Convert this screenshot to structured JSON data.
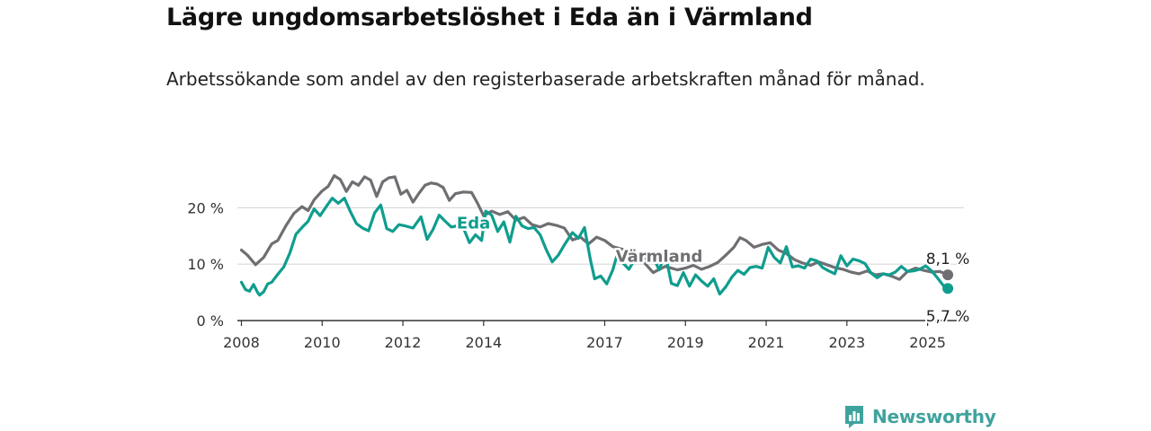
{
  "title": "Lägre ungdomsarbetslöshet i Eda än i Värmland",
  "subtitle": "Arbetssökande som andel av den registerbaserade arbetskraften månad för månad.",
  "brand": {
    "name": "Newsworthy"
  },
  "colors": {
    "eda": "#0f9d8e",
    "varmland": "#6f6f73",
    "grid": "#d9d9d9",
    "axis": "#333333",
    "brand": "#3fa39d"
  },
  "chart_data": {
    "type": "line",
    "title": "",
    "xlabel": "",
    "ylabel": "",
    "x_range": [
      2007.9,
      2025.9
    ],
    "ylim": [
      0,
      25
    ],
    "grid": "horizontal",
    "y_ticks": [
      0,
      10,
      20
    ],
    "y_tick_labels": [
      "0 %",
      "10 %",
      "20 %"
    ],
    "x_ticks": [
      2008,
      2010,
      2012,
      2014,
      2017,
      2019,
      2021,
      2023,
      2025
    ],
    "x_tick_labels": [
      "2008",
      "2010",
      "2012",
      "2014",
      "2017",
      "2019",
      "2021",
      "2023",
      "2025"
    ],
    "series": [
      {
        "name": "Värmland",
        "color": "#6f6f73",
        "label": {
          "text": "Värmland",
          "anchor": [
            2018.35,
            10.4
          ]
        },
        "end_value_label": "8,1 %",
        "end_point": [
          2025.5,
          8.1
        ],
        "points": [
          [
            2008.0,
            12.5
          ],
          [
            2008.15,
            11.6
          ],
          [
            2008.35,
            9.9
          ],
          [
            2008.55,
            11.2
          ],
          [
            2008.75,
            13.6
          ],
          [
            2008.9,
            14.2
          ],
          [
            2009.1,
            16.8
          ],
          [
            2009.3,
            19.0
          ],
          [
            2009.5,
            20.2
          ],
          [
            2009.65,
            19.5
          ],
          [
            2009.8,
            21.4
          ],
          [
            2010.0,
            23.0
          ],
          [
            2010.15,
            23.8
          ],
          [
            2010.3,
            25.7
          ],
          [
            2010.45,
            25.0
          ],
          [
            2010.6,
            22.9
          ],
          [
            2010.75,
            24.6
          ],
          [
            2010.9,
            24.0
          ],
          [
            2011.05,
            25.5
          ],
          [
            2011.2,
            24.9
          ],
          [
            2011.35,
            22.0
          ],
          [
            2011.5,
            24.6
          ],
          [
            2011.65,
            25.3
          ],
          [
            2011.8,
            25.5
          ],
          [
            2011.95,
            22.4
          ],
          [
            2012.1,
            23.1
          ],
          [
            2012.25,
            21.0
          ],
          [
            2012.4,
            22.6
          ],
          [
            2012.55,
            24.0
          ],
          [
            2012.7,
            24.4
          ],
          [
            2012.85,
            24.2
          ],
          [
            2013.0,
            23.6
          ],
          [
            2013.15,
            21.3
          ],
          [
            2013.3,
            22.5
          ],
          [
            2013.5,
            22.8
          ],
          [
            2013.7,
            22.7
          ],
          [
            2013.85,
            20.8
          ],
          [
            2014.0,
            18.6
          ],
          [
            2014.2,
            19.4
          ],
          [
            2014.4,
            18.8
          ],
          [
            2014.6,
            19.3
          ],
          [
            2014.8,
            17.8
          ],
          [
            2015.0,
            18.3
          ],
          [
            2015.2,
            17.0
          ],
          [
            2015.4,
            16.6
          ],
          [
            2015.6,
            17.2
          ],
          [
            2015.8,
            16.9
          ],
          [
            2016.0,
            16.4
          ],
          [
            2016.2,
            14.3
          ],
          [
            2016.4,
            14.8
          ],
          [
            2016.6,
            13.6
          ],
          [
            2016.8,
            14.8
          ],
          [
            2017.0,
            14.2
          ],
          [
            2017.2,
            13.1
          ],
          [
            2017.4,
            12.7
          ],
          [
            2017.6,
            12.4
          ],
          [
            2017.8,
            11.5
          ],
          [
            2018.0,
            10.1
          ],
          [
            2018.2,
            8.5
          ],
          [
            2018.5,
            9.6
          ],
          [
            2018.8,
            9.0
          ],
          [
            2019.0,
            9.3
          ],
          [
            2019.2,
            9.8
          ],
          [
            2019.4,
            9.1
          ],
          [
            2019.6,
            9.6
          ],
          [
            2019.8,
            10.3
          ],
          [
            2020.0,
            11.6
          ],
          [
            2020.2,
            13.0
          ],
          [
            2020.35,
            14.7
          ],
          [
            2020.5,
            14.2
          ],
          [
            2020.7,
            13.0
          ],
          [
            2020.9,
            13.5
          ],
          [
            2021.1,
            13.8
          ],
          [
            2021.3,
            12.5
          ],
          [
            2021.5,
            11.9
          ],
          [
            2021.7,
            10.8
          ],
          [
            2021.9,
            10.2
          ],
          [
            2022.1,
            9.8
          ],
          [
            2022.3,
            10.4
          ],
          [
            2022.5,
            9.9
          ],
          [
            2022.7,
            9.4
          ],
          [
            2022.9,
            9.1
          ],
          [
            2023.1,
            8.6
          ],
          [
            2023.3,
            8.3
          ],
          [
            2023.5,
            8.8
          ],
          [
            2023.7,
            8.1
          ],
          [
            2023.9,
            8.3
          ],
          [
            2024.1,
            7.9
          ],
          [
            2024.3,
            7.3
          ],
          [
            2024.5,
            8.7
          ],
          [
            2024.7,
            9.3
          ],
          [
            2024.9,
            8.9
          ],
          [
            2025.1,
            8.6
          ],
          [
            2025.3,
            8.7
          ],
          [
            2025.5,
            8.1
          ]
        ]
      },
      {
        "name": "Eda",
        "color": "#0f9d8e",
        "label": {
          "text": "Eda",
          "anchor": [
            2013.75,
            16.3
          ]
        },
        "end_value_label": "5,7 %",
        "end_point": [
          2025.5,
          5.7
        ],
        "points": [
          [
            2008.0,
            6.8
          ],
          [
            2008.1,
            5.5
          ],
          [
            2008.2,
            5.2
          ],
          [
            2008.3,
            6.4
          ],
          [
            2008.4,
            5.0
          ],
          [
            2008.45,
            4.5
          ],
          [
            2008.55,
            5.1
          ],
          [
            2008.65,
            6.5
          ],
          [
            2008.75,
            6.8
          ],
          [
            2008.9,
            8.2
          ],
          [
            2009.05,
            9.5
          ],
          [
            2009.2,
            12.0
          ],
          [
            2009.35,
            15.3
          ],
          [
            2009.5,
            16.5
          ],
          [
            2009.65,
            17.6
          ],
          [
            2009.8,
            19.8
          ],
          [
            2009.95,
            18.6
          ],
          [
            2010.1,
            20.2
          ],
          [
            2010.25,
            21.7
          ],
          [
            2010.4,
            20.8
          ],
          [
            2010.55,
            21.7
          ],
          [
            2010.7,
            19.3
          ],
          [
            2010.85,
            17.2
          ],
          [
            2011.0,
            16.4
          ],
          [
            2011.15,
            15.9
          ],
          [
            2011.3,
            19.1
          ],
          [
            2011.45,
            20.5
          ],
          [
            2011.6,
            16.3
          ],
          [
            2011.75,
            15.8
          ],
          [
            2011.9,
            17.0
          ],
          [
            2012.05,
            16.8
          ],
          [
            2012.25,
            16.4
          ],
          [
            2012.45,
            18.4
          ],
          [
            2012.6,
            14.4
          ],
          [
            2012.75,
            16.2
          ],
          [
            2012.9,
            18.7
          ],
          [
            2013.05,
            17.6
          ],
          [
            2013.2,
            16.6
          ],
          [
            2013.35,
            16.8
          ],
          [
            2013.5,
            16.4
          ],
          [
            2013.65,
            13.8
          ],
          [
            2013.8,
            15.2
          ],
          [
            2013.95,
            14.2
          ],
          [
            2014.05,
            19.4
          ],
          [
            2014.2,
            18.7
          ],
          [
            2014.35,
            15.8
          ],
          [
            2014.5,
            17.5
          ],
          [
            2014.65,
            13.9
          ],
          [
            2014.8,
            18.5
          ],
          [
            2014.95,
            16.8
          ],
          [
            2015.1,
            16.3
          ],
          [
            2015.25,
            16.5
          ],
          [
            2015.4,
            15.2
          ],
          [
            2015.55,
            12.6
          ],
          [
            2015.7,
            10.4
          ],
          [
            2015.85,
            11.6
          ],
          [
            2016.0,
            13.4
          ],
          [
            2016.2,
            15.6
          ],
          [
            2016.35,
            14.6
          ],
          [
            2016.5,
            16.5
          ],
          [
            2016.65,
            10.6
          ],
          [
            2016.75,
            7.4
          ],
          [
            2016.9,
            7.9
          ],
          [
            2017.05,
            6.5
          ],
          [
            2017.2,
            9.0
          ],
          [
            2017.3,
            11.5
          ],
          [
            2017.45,
            10.2
          ],
          [
            2017.6,
            9.1
          ],
          [
            2017.75,
            10.9
          ],
          [
            2017.9,
            11.6
          ],
          [
            2018.05,
            10.7
          ],
          [
            2018.2,
            11.2
          ],
          [
            2018.35,
            9.0
          ],
          [
            2018.5,
            11.9
          ],
          [
            2018.65,
            6.6
          ],
          [
            2018.8,
            6.2
          ],
          [
            2018.95,
            8.5
          ],
          [
            2019.1,
            6.1
          ],
          [
            2019.25,
            8.1
          ],
          [
            2019.4,
            7.0
          ],
          [
            2019.55,
            6.1
          ],
          [
            2019.7,
            7.4
          ],
          [
            2019.85,
            4.7
          ],
          [
            2020.0,
            6.0
          ],
          [
            2020.15,
            7.7
          ],
          [
            2020.3,
            8.9
          ],
          [
            2020.45,
            8.2
          ],
          [
            2020.6,
            9.4
          ],
          [
            2020.75,
            9.6
          ],
          [
            2020.9,
            9.3
          ],
          [
            2021.05,
            13.0
          ],
          [
            2021.2,
            11.2
          ],
          [
            2021.35,
            10.2
          ],
          [
            2021.5,
            13.1
          ],
          [
            2021.65,
            9.5
          ],
          [
            2021.8,
            9.7
          ],
          [
            2021.95,
            9.3
          ],
          [
            2022.1,
            10.9
          ],
          [
            2022.25,
            10.6
          ],
          [
            2022.4,
            9.4
          ],
          [
            2022.55,
            8.8
          ],
          [
            2022.7,
            8.3
          ],
          [
            2022.85,
            11.5
          ],
          [
            2023.0,
            9.7
          ],
          [
            2023.15,
            10.9
          ],
          [
            2023.3,
            10.6
          ],
          [
            2023.45,
            10.1
          ],
          [
            2023.6,
            8.4
          ],
          [
            2023.75,
            7.6
          ],
          [
            2023.9,
            8.3
          ],
          [
            2024.05,
            8.1
          ],
          [
            2024.2,
            8.6
          ],
          [
            2024.35,
            9.6
          ],
          [
            2024.5,
            8.7
          ],
          [
            2024.65,
            8.8
          ],
          [
            2024.8,
            9.1
          ],
          [
            2024.95,
            9.7
          ],
          [
            2025.1,
            8.8
          ],
          [
            2025.25,
            7.5
          ],
          [
            2025.4,
            6.1
          ],
          [
            2025.5,
            5.7
          ]
        ]
      }
    ]
  }
}
